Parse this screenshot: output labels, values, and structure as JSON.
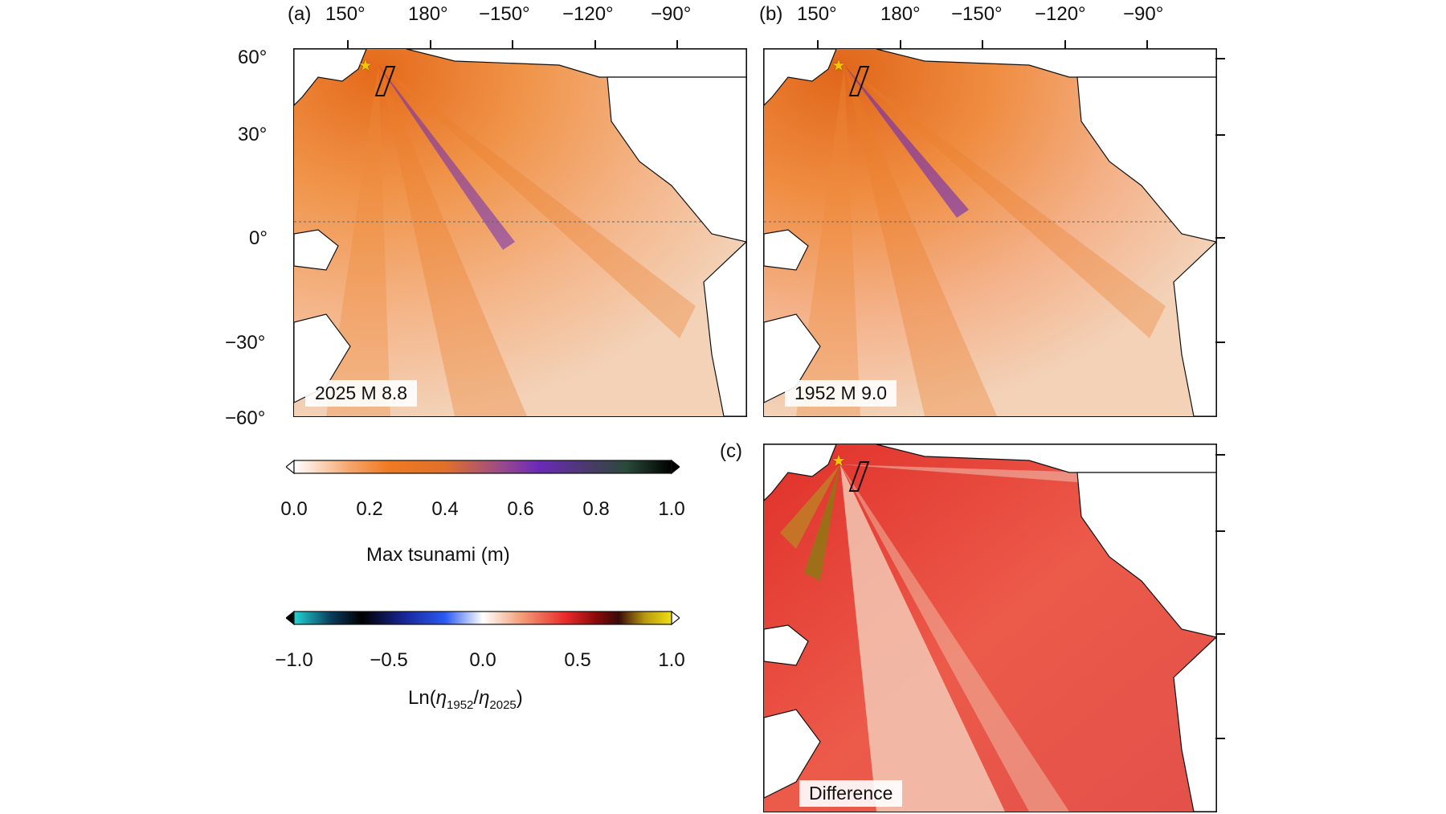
{
  "panels": [
    {
      "letter": "(a)",
      "label": "2025 M 8.8"
    },
    {
      "letter": "(b)",
      "label": "1952 M 9.0"
    },
    {
      "letter": "(c)",
      "label": "Difference"
    }
  ],
  "longitude_ticks": [
    "150°",
    "180°",
    "−150°",
    "−120°",
    "−90°"
  ],
  "latitude_ticks": [
    "60°",
    "30°",
    "0°",
    "−30°",
    "−60°"
  ],
  "colorbar_tsunami": {
    "title": "Max tsunami (m)",
    "ticks": [
      "0.0",
      "0.2",
      "0.4",
      "0.6",
      "0.8",
      "1.0"
    ],
    "colors": [
      "#ffffff",
      "#f5a46a",
      "#f07a22",
      "#e0702a",
      "#9a4a8a",
      "#6a2ab8",
      "#4a3a6a",
      "#2a4a3a",
      "#000000"
    ]
  },
  "colorbar_ratio": {
    "title_prefix": "Ln(",
    "eta": "η",
    "sub1": "1952",
    "slash": "/",
    "sub2": "2025",
    "title_suffix": ")",
    "ticks": [
      "−1.0",
      "−0.5",
      "0.0",
      "0.5",
      "1.0"
    ],
    "colors": [
      "#22d4d4",
      "#0a3a5a",
      "#000000",
      "#1a2aa0",
      "#2a5af0",
      "#ffffff",
      "#f2a07a",
      "#e82a2a",
      "#8a0a0a",
      "#3a0a0a",
      "#b89a10",
      "#f0e010"
    ]
  },
  "epicenter_marker": "star-icon"
}
